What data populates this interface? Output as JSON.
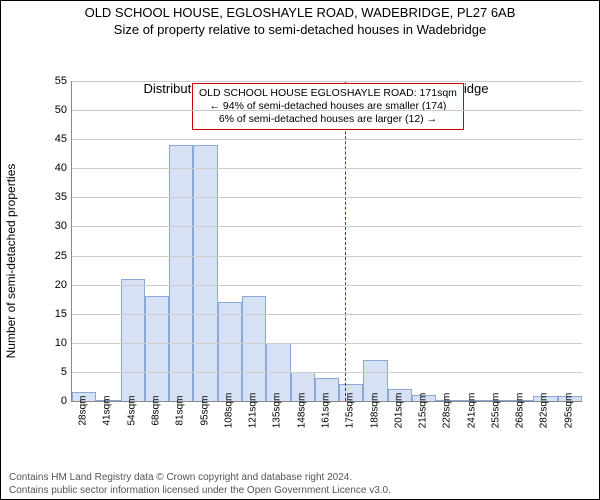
{
  "title": "OLD SCHOOL HOUSE, EGLOSHAYLE ROAD, WADEBRIDGE, PL27 6AB",
  "subtitle": "Size of property relative to semi-detached houses in Wadebridge",
  "y_axis_label": "Number of semi-detached properties",
  "x_axis_label": "Distribution of semi-detached houses by size in Wadebridge",
  "chart": {
    "type": "histogram",
    "y_max": 55,
    "y_tick_step": 5,
    "y_ticks": [
      0,
      5,
      10,
      15,
      20,
      25,
      30,
      35,
      40,
      45,
      50,
      55
    ],
    "x_labels": [
      "28sqm",
      "41sqm",
      "54sqm",
      "68sqm",
      "81sqm",
      "95sqm",
      "108sqm",
      "121sqm",
      "135sqm",
      "148sqm",
      "161sqm",
      "175sqm",
      "188sqm",
      "201sqm",
      "215sqm",
      "228sqm",
      "241sqm",
      "255sqm",
      "268sqm",
      "282sqm",
      "295sqm"
    ],
    "values": [
      1.5,
      0,
      21,
      18,
      44,
      44,
      17,
      18,
      10,
      5,
      4,
      3,
      7,
      2,
      1,
      0,
      0,
      0,
      0,
      0.8,
      0.8
    ],
    "bar_fill": "#d6e2f3",
    "bar_stroke": "#8aa8d8",
    "grid_color": "#cccccc",
    "axis_color": "#888888",
    "background": "#ffffff"
  },
  "marker": {
    "value_sqm": 171,
    "color": "#cc0000",
    "dash": "dashed"
  },
  "annotation": {
    "line1": "OLD SCHOOL HOUSE EGLOSHAYLE ROAD: 171sqm",
    "line2": "← 94% of semi-detached houses are smaller (174)",
    "line3": "6% of semi-detached houses are larger (12) →",
    "border_color": "#cc0000",
    "bg_color": "#ffffff",
    "font_size": 10.5
  },
  "footer": {
    "line1": "Contains HM Land Registry data © Crown copyright and database right 2024.",
    "line2": "Contains public sector information licensed under the Open Government Licence v3.0.",
    "color": "#555555"
  }
}
